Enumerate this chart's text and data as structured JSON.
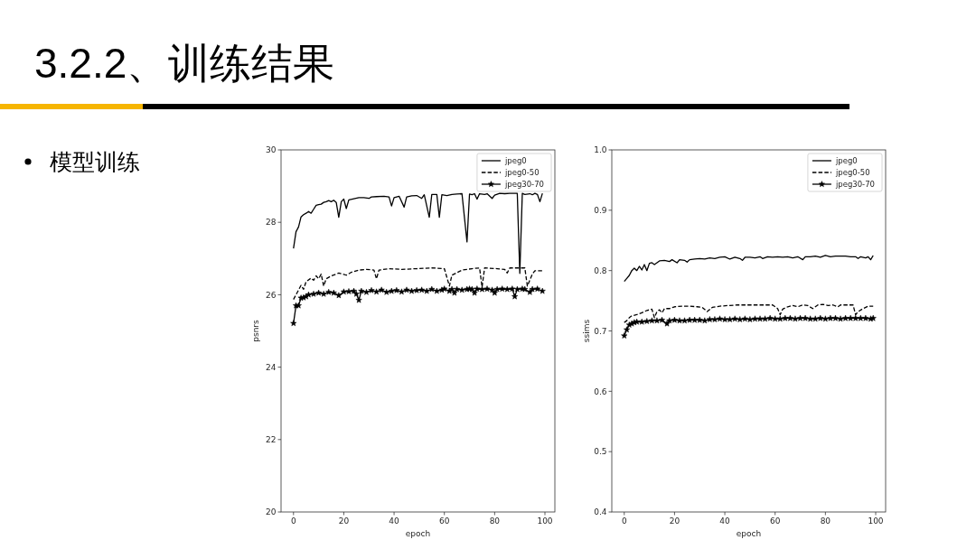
{
  "chart_data": [
    {
      "type": "line",
      "title": "3.2.2、训练结果",
      "subtitle": "模型训练",
      "xlabel": "epoch",
      "ylabel": "psnrs",
      "xlim": [
        -4.95,
        103.95
      ],
      "ylim": [
        20,
        30
      ],
      "xticks": [
        0,
        20,
        40,
        60,
        80,
        100
      ],
      "yticks": [
        20,
        22,
        24,
        26,
        28,
        30
      ],
      "legend": "top right",
      "series": [
        {
          "name": "jpeg0",
          "color": "#000000",
          "line_style": "solid",
          "x": [
            0,
            1,
            2,
            3,
            4,
            5,
            6,
            7,
            8,
            9,
            10,
            11,
            12,
            13,
            14,
            15,
            16,
            17,
            18,
            19,
            20,
            21,
            22,
            24,
            26,
            28,
            30,
            31,
            33,
            36,
            38,
            39,
            40,
            42,
            44,
            45,
            47,
            49,
            51,
            52,
            54,
            55,
            57,
            58,
            59,
            61,
            63,
            65,
            67,
            69,
            70,
            71,
            72,
            73,
            74,
            76,
            77,
            79,
            80,
            82,
            84,
            86,
            88,
            89,
            90,
            91,
            92,
            94,
            95,
            96,
            97,
            98,
            99
          ],
          "values": [
            27.28,
            27.74,
            27.87,
            28.15,
            28.21,
            28.25,
            28.3,
            28.25,
            28.36,
            28.47,
            28.49,
            28.5,
            28.55,
            28.57,
            28.6,
            28.57,
            28.61,
            28.55,
            28.14,
            28.57,
            28.64,
            28.38,
            28.62,
            28.65,
            28.68,
            28.68,
            28.66,
            28.7,
            28.71,
            28.72,
            28.7,
            28.45,
            28.68,
            28.72,
            28.42,
            28.7,
            28.73,
            28.74,
            28.66,
            28.76,
            28.14,
            28.77,
            28.77,
            28.14,
            28.76,
            28.74,
            28.77,
            28.78,
            28.79,
            27.46,
            28.78,
            28.76,
            28.79,
            28.64,
            28.79,
            28.77,
            28.79,
            28.66,
            28.75,
            28.8,
            28.79,
            28.8,
            28.8,
            28.8,
            26.59,
            28.8,
            28.77,
            28.79,
            28.76,
            28.8,
            28.77,
            28.57,
            28.8
          ]
        },
        {
          "name": "jpeg0-50",
          "color": "#000000",
          "line_style": "dashed",
          "x": [
            0,
            1,
            3,
            4,
            5,
            7,
            8,
            9,
            10,
            11,
            12,
            13,
            15,
            17,
            18,
            21,
            23,
            26,
            29,
            32,
            33,
            34,
            38,
            43,
            49,
            55,
            60,
            62,
            63,
            67,
            71,
            74,
            75,
            76,
            81,
            84,
            85,
            86,
            92,
            93,
            95,
            96,
            99
          ],
          "values": [
            25.87,
            26.0,
            26.26,
            26.15,
            26.36,
            26.46,
            26.4,
            26.52,
            26.44,
            26.57,
            26.24,
            26.44,
            26.52,
            26.57,
            26.6,
            26.54,
            26.62,
            26.68,
            26.7,
            26.68,
            26.44,
            26.68,
            26.72,
            26.7,
            26.72,
            26.74,
            26.72,
            26.24,
            26.54,
            26.68,
            26.72,
            26.74,
            26.21,
            26.74,
            26.72,
            26.7,
            26.6,
            26.74,
            26.74,
            26.24,
            26.57,
            26.66,
            26.66
          ]
        },
        {
          "name": "jpeg30-70",
          "color": "#000000",
          "line_style": "solid",
          "marker": "star",
          "x": [
            0,
            1,
            2,
            3,
            4,
            5,
            6,
            8,
            10,
            12,
            14,
            16,
            18,
            20,
            22,
            24,
            25,
            26,
            27,
            29,
            31,
            33,
            35,
            37,
            39,
            41,
            43,
            45,
            47,
            49,
            51,
            53,
            55,
            57,
            59,
            60,
            62,
            63,
            64,
            65,
            67,
            69,
            70,
            71,
            72,
            73,
            75,
            77,
            79,
            80,
            81,
            83,
            85,
            87,
            88,
            89,
            91,
            92,
            94,
            95,
            97,
            99
          ],
          "values": [
            25.21,
            25.7,
            25.7,
            25.91,
            25.92,
            25.95,
            26.0,
            26.02,
            26.05,
            26.02,
            26.07,
            26.05,
            25.98,
            26.08,
            26.09,
            26.1,
            26.02,
            25.85,
            26.1,
            26.07,
            26.12,
            26.08,
            26.13,
            26.07,
            26.1,
            26.12,
            26.08,
            26.13,
            26.1,
            26.12,
            26.13,
            26.1,
            26.15,
            26.1,
            26.13,
            26.16,
            26.1,
            26.15,
            26.05,
            26.15,
            26.13,
            26.15,
            26.16,
            26.15,
            26.05,
            26.16,
            26.15,
            26.16,
            26.13,
            26.05,
            26.15,
            26.16,
            26.15,
            26.16,
            25.95,
            26.15,
            26.16,
            26.15,
            26.07,
            26.15,
            26.16,
            26.1
          ]
        }
      ]
    },
    {
      "type": "line",
      "xlabel": "epoch",
      "ylabel": "ssims",
      "xlim": [
        -4.95,
        103.95
      ],
      "ylim": [
        0.4,
        1.0
      ],
      "xticks": [
        0,
        20,
        40,
        60,
        80,
        100
      ],
      "yticks": [
        0.4,
        0.5,
        0.6,
        0.7,
        0.8,
        0.9,
        {
          "value": 1.0,
          "label": "1.0"
        }
      ],
      "legend": "top right",
      "series": [
        {
          "name": "jpeg0",
          "color": "#000000",
          "line_style": "solid",
          "x": [
            0,
            1,
            2,
            3,
            4,
            5,
            6,
            7,
            8,
            9,
            10,
            11,
            12,
            13,
            14,
            16,
            18,
            19,
            21,
            22,
            24,
            25,
            26,
            28,
            30,
            32,
            34,
            36,
            38,
            40,
            42,
            44,
            46,
            47,
            48,
            50,
            52,
            54,
            55,
            57,
            59,
            61,
            63,
            65,
            67,
            69,
            71,
            72,
            74,
            76,
            78,
            80,
            82,
            84,
            86,
            88,
            90,
            92,
            93,
            94,
            96,
            97,
            98,
            99
          ],
          "values": [
            0.782,
            0.787,
            0.792,
            0.8,
            0.804,
            0.8,
            0.807,
            0.801,
            0.81,
            0.8,
            0.812,
            0.813,
            0.81,
            0.813,
            0.816,
            0.817,
            0.815,
            0.818,
            0.813,
            0.818,
            0.817,
            0.814,
            0.818,
            0.819,
            0.82,
            0.819,
            0.821,
            0.82,
            0.822,
            0.823,
            0.819,
            0.822,
            0.82,
            0.817,
            0.822,
            0.822,
            0.821,
            0.823,
            0.82,
            0.823,
            0.822,
            0.823,
            0.822,
            0.823,
            0.821,
            0.823,
            0.818,
            0.823,
            0.823,
            0.824,
            0.822,
            0.825,
            0.823,
            0.824,
            0.824,
            0.824,
            0.823,
            0.823,
            0.82,
            0.823,
            0.821,
            0.823,
            0.818,
            0.825
          ]
        },
        {
          "name": "jpeg0-50",
          "color": "#000000",
          "line_style": "dashed",
          "x": [
            0,
            1,
            2,
            3,
            5,
            7,
            9,
            11,
            12,
            13,
            14,
            15,
            16,
            18,
            20,
            23,
            26,
            29,
            31,
            33,
            35,
            38,
            41,
            45,
            50,
            55,
            59,
            61,
            62,
            63,
            65,
            67,
            69,
            71,
            73,
            75,
            77,
            79,
            81,
            83,
            85,
            86,
            88,
            90,
            91,
            92,
            93,
            95,
            97,
            99
          ],
          "values": [
            0.714,
            0.717,
            0.722,
            0.725,
            0.727,
            0.73,
            0.734,
            0.736,
            0.722,
            0.732,
            0.735,
            0.73,
            0.737,
            0.737,
            0.74,
            0.741,
            0.741,
            0.74,
            0.739,
            0.732,
            0.739,
            0.741,
            0.742,
            0.743,
            0.743,
            0.743,
            0.743,
            0.737,
            0.727,
            0.736,
            0.74,
            0.742,
            0.74,
            0.743,
            0.742,
            0.737,
            0.743,
            0.744,
            0.742,
            0.743,
            0.74,
            0.743,
            0.743,
            0.743,
            0.743,
            0.727,
            0.732,
            0.737,
            0.741,
            0.741
          ]
        },
        {
          "name": "jpeg30-70",
          "color": "#000000",
          "line_style": "solid",
          "marker": "star",
          "x": [
            0,
            1,
            2,
            3,
            4,
            5,
            7,
            9,
            11,
            13,
            15,
            17,
            18,
            20,
            22,
            24,
            26,
            28,
            30,
            32,
            34,
            36,
            38,
            40,
            42,
            44,
            46,
            48,
            50,
            52,
            54,
            56,
            58,
            60,
            62,
            64,
            66,
            68,
            70,
            72,
            74,
            76,
            78,
            80,
            82,
            84,
            86,
            88,
            90,
            92,
            94,
            96,
            98,
            99
          ],
          "values": [
            0.692,
            0.702,
            0.71,
            0.712,
            0.714,
            0.715,
            0.715,
            0.716,
            0.717,
            0.717,
            0.718,
            0.712,
            0.717,
            0.718,
            0.717,
            0.717,
            0.718,
            0.718,
            0.718,
            0.717,
            0.719,
            0.719,
            0.72,
            0.719,
            0.719,
            0.72,
            0.719,
            0.72,
            0.719,
            0.72,
            0.72,
            0.72,
            0.721,
            0.72,
            0.72,
            0.721,
            0.721,
            0.72,
            0.721,
            0.721,
            0.72,
            0.72,
            0.721,
            0.72,
            0.721,
            0.721,
            0.72,
            0.721,
            0.721,
            0.721,
            0.721,
            0.721,
            0.72,
            0.721
          ]
        }
      ]
    }
  ]
}
